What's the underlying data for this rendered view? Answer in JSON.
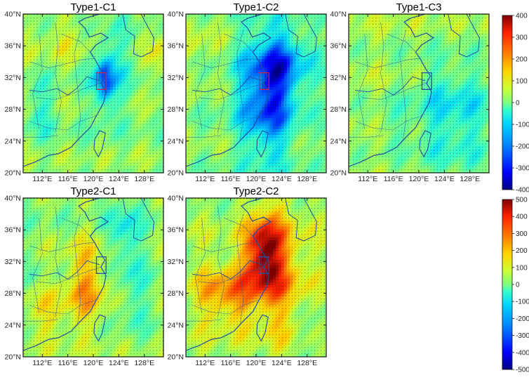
{
  "figure": {
    "panels": [
      {
        "id": "type1-c1",
        "title": "Type1-C1",
        "pattern": "mild-negative",
        "colorbar": "top",
        "box_color": "#d6204a"
      },
      {
        "id": "type1-c2",
        "title": "Type1-C2",
        "pattern": "strong-negative",
        "colorbar": "top",
        "box_color": "#d6204a"
      },
      {
        "id": "type1-c3",
        "title": "Type1-C3",
        "pattern": "weak-negative",
        "colorbar": "top",
        "box_color": "#2a4fa8"
      },
      {
        "id": "type2-c1",
        "title": "Type2-C1",
        "pattern": "mixed-positive",
        "colorbar": "bottom",
        "box_color": "#2a4fa8"
      },
      {
        "id": "type2-c2",
        "title": "Type2-C2",
        "pattern": "strong-positive",
        "colorbar": "bottom",
        "box_color": "#2a4fa8"
      }
    ],
    "lat_ticks": [
      "40°N",
      "36°N",
      "32°N",
      "28°N",
      "24°N",
      "20°N"
    ],
    "lon_ticks": [
      "112°E",
      "116°E",
      "120°E",
      "124°E",
      "128°E"
    ],
    "lat_range": [
      20,
      40
    ],
    "lon_range": [
      109,
      131
    ],
    "colorbars": [
      {
        "id": "colorbar-top",
        "ticks": [
          "400",
          "300",
          "200",
          "100",
          "0",
          "-100",
          "-200",
          "-300",
          "-400"
        ],
        "range": [
          -400,
          400
        ]
      },
      {
        "id": "colorbar-bottom",
        "ticks": [
          "500",
          "400",
          "300",
          "200",
          "100",
          "0",
          "-100",
          "-200",
          "-300",
          "-400",
          "-500"
        ],
        "range": [
          -500,
          500
        ]
      }
    ],
    "colormap": [
      "#00007f",
      "#0000ff",
      "#007fff",
      "#00d4ff",
      "#35ffca",
      "#7fff7f",
      "#caff35",
      "#ffd400",
      "#ff7f00",
      "#ff2200",
      "#7f0000"
    ],
    "stipple": true
  }
}
